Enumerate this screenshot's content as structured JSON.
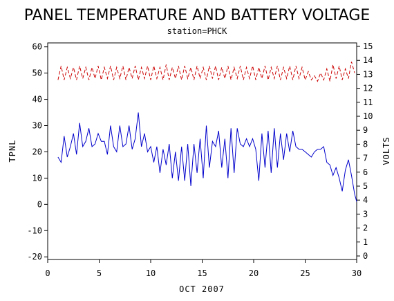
{
  "chart_data": {
    "type": "line",
    "title": "PANEL TEMPERATURE AND BATTERY VOLTAGE",
    "subtitle": "station=PHCK",
    "xlabel": "OCT 2007",
    "ylabel_left": "TPNL",
    "ylabel_right": "VOLTS",
    "xlim": [
      0,
      30
    ],
    "ylim_left": [
      -21,
      61.5
    ],
    "ylim_right": [
      -0.25,
      15.25
    ],
    "x_ticks": [
      "0",
      "5",
      "10",
      "15",
      "20",
      "25",
      "30"
    ],
    "y_left_ticks": [
      "-20",
      "-10",
      "0",
      "10",
      "20",
      "30",
      "40",
      "50",
      "60"
    ],
    "y_right_ticks": [
      "0",
      "1",
      "2",
      "3",
      "4",
      "5",
      "6",
      "7",
      "8",
      "9",
      "10",
      "11",
      "12",
      "13",
      "14",
      "15"
    ],
    "grid": false,
    "series": [
      {
        "axis": "left",
        "color": "#0000cc",
        "style": "solid",
        "x": [
          1.0,
          1.3,
          1.6,
          1.9,
          2.2,
          2.5,
          2.8,
          3.1,
          3.4,
          3.7,
          4.0,
          4.3,
          4.6,
          4.9,
          5.2,
          5.5,
          5.8,
          6.1,
          6.4,
          6.7,
          7.0,
          7.3,
          7.6,
          7.9,
          8.2,
          8.5,
          8.8,
          9.1,
          9.4,
          9.7,
          10.0,
          10.3,
          10.6,
          10.9,
          11.2,
          11.5,
          11.8,
          12.1,
          12.4,
          12.7,
          13.0,
          13.3,
          13.6,
          13.9,
          14.2,
          14.5,
          14.8,
          15.1,
          15.4,
          15.7,
          16.0,
          16.3,
          16.6,
          16.9,
          17.2,
          17.5,
          17.8,
          18.1,
          18.4,
          18.7,
          19.0,
          19.3,
          19.6,
          19.9,
          20.2,
          20.5,
          20.8,
          21.1,
          21.4,
          21.7,
          22.0,
          22.3,
          22.6,
          22.9,
          23.2,
          23.5,
          23.8,
          24.1,
          24.4,
          24.7,
          25.0,
          25.3,
          25.6,
          25.9,
          26.2,
          26.5,
          26.8,
          27.1,
          27.4,
          27.7,
          28.0,
          28.3,
          28.6,
          28.9,
          29.2,
          29.5,
          29.8,
          30.0
        ],
        "y": [
          18,
          16,
          26,
          18,
          22,
          27,
          19,
          31,
          22,
          24,
          29,
          22,
          23,
          27,
          24,
          24,
          19,
          30,
          22,
          20,
          30,
          22,
          23,
          30,
          21,
          25,
          35,
          22,
          27,
          20,
          22,
          16,
          22,
          12,
          21,
          15,
          23,
          10,
          20,
          9,
          22,
          9,
          23,
          7,
          23,
          12,
          25,
          10,
          30,
          14,
          24,
          22,
          28,
          14,
          25,
          10,
          29,
          12,
          29,
          23,
          22,
          25,
          22,
          25,
          21,
          9,
          27,
          14,
          28,
          12,
          29,
          14,
          27,
          17,
          27,
          20,
          28,
          22,
          21,
          21,
          20,
          19,
          18,
          20,
          21,
          21,
          22,
          16,
          15,
          11,
          14,
          10,
          5,
          13,
          17,
          11,
          4,
          1
        ]
      },
      {
        "axis": "right",
        "color": "#cc0000",
        "style": "dashed",
        "x": [
          1.0,
          1.3,
          1.6,
          1.9,
          2.2,
          2.5,
          2.8,
          3.1,
          3.4,
          3.7,
          4.0,
          4.3,
          4.6,
          4.9,
          5.2,
          5.5,
          5.8,
          6.1,
          6.4,
          6.7,
          7.0,
          7.3,
          7.6,
          7.9,
          8.2,
          8.5,
          8.8,
          9.1,
          9.4,
          9.7,
          10.0,
          10.3,
          10.6,
          10.9,
          11.2,
          11.5,
          11.8,
          12.1,
          12.4,
          12.7,
          13.0,
          13.3,
          13.6,
          13.9,
          14.2,
          14.5,
          14.8,
          15.1,
          15.4,
          15.7,
          16.0,
          16.3,
          16.6,
          16.9,
          17.2,
          17.5,
          17.8,
          18.1,
          18.4,
          18.7,
          19.0,
          19.3,
          19.6,
          19.9,
          20.2,
          20.5,
          20.8,
          21.1,
          21.4,
          21.7,
          22.0,
          22.3,
          22.6,
          22.9,
          23.2,
          23.5,
          23.8,
          24.1,
          24.4,
          24.7,
          25.0,
          25.3,
          25.6,
          25.9,
          26.2,
          26.5,
          26.8,
          27.1,
          27.4,
          27.7,
          28.0,
          28.3,
          28.6,
          28.9,
          29.2,
          29.5,
          29.8
        ],
        "y": [
          12.6,
          13.6,
          12.6,
          13.5,
          12.7,
          13.5,
          12.6,
          13.6,
          12.7,
          13.5,
          12.6,
          13.5,
          12.7,
          13.6,
          12.6,
          13.5,
          12.7,
          13.6,
          12.6,
          13.5,
          12.7,
          13.6,
          12.6,
          13.5,
          12.7,
          13.6,
          12.6,
          13.5,
          12.7,
          13.6,
          12.6,
          13.6,
          12.7,
          13.5,
          12.6,
          13.7,
          12.6,
          13.5,
          12.7,
          13.6,
          12.6,
          13.6,
          12.7,
          13.5,
          12.6,
          13.6,
          12.7,
          13.5,
          12.6,
          13.6,
          12.7,
          13.6,
          12.6,
          13.5,
          12.7,
          13.6,
          12.6,
          13.5,
          12.7,
          13.6,
          12.6,
          13.5,
          12.7,
          13.6,
          12.6,
          13.5,
          12.7,
          13.6,
          12.6,
          13.5,
          12.7,
          13.6,
          12.6,
          13.5,
          12.7,
          13.6,
          12.6,
          13.6,
          12.7,
          13.5,
          12.6,
          13.2,
          12.6,
          12.9,
          12.5,
          13.1,
          12.6,
          13.4,
          12.5,
          13.7,
          12.7,
          13.6,
          12.6,
          13.4,
          12.7,
          13.9,
          13.1
        ]
      }
    ]
  }
}
